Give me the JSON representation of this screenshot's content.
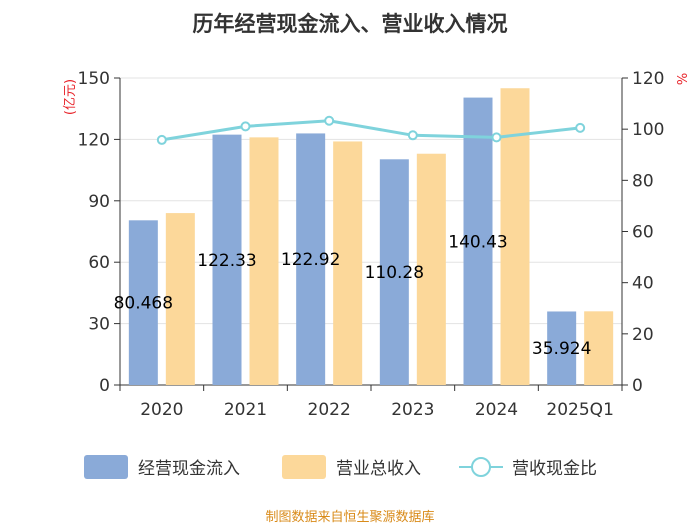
{
  "chart_data": {
    "type": "bar",
    "title": "历年经营现金流入、营业收入情况",
    "categories": [
      "2020",
      "2021",
      "2022",
      "2023",
      "2024",
      "2025Q1"
    ],
    "series": [
      {
        "name": "经营现金流入",
        "axis": "left",
        "color": "#8aaad8",
        "values": [
          80.468,
          122.33,
          122.92,
          110.28,
          140.43,
          35.924
        ],
        "data_labels": [
          "80.468",
          "122.33",
          "122.92",
          "110.28",
          "140.43",
          "35.924"
        ]
      },
      {
        "name": "营业总收入",
        "axis": "left",
        "color": "#fcd89a",
        "values": [
          84,
          121,
          119,
          113,
          145,
          36
        ]
      },
      {
        "name": "营收现金比",
        "axis": "right",
        "type": "line",
        "color": "#7fd3dc",
        "values": [
          95.8,
          101.1,
          103.3,
          97.6,
          96.8,
          100.5
        ]
      }
    ],
    "y_left": {
      "unit": "(亿元)",
      "ylim": [
        0,
        150
      ],
      "ticks": [
        0,
        30,
        60,
        90,
        120,
        150
      ]
    },
    "y_right": {
      "unit": "%",
      "ylim": [
        0,
        120
      ],
      "ticks": [
        0,
        20,
        40,
        60,
        80,
        100,
        120
      ]
    },
    "grid": true,
    "legend_position": "bottom"
  },
  "source": "制图数据来自恒生聚源数据库"
}
